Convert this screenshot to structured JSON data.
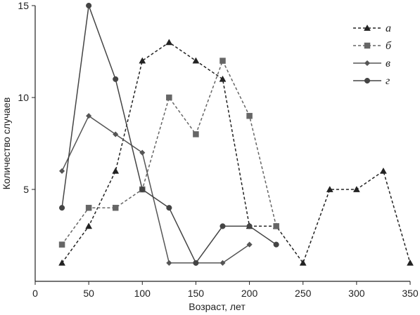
{
  "chart_data": {
    "type": "line",
    "xlabel": "Возраст, лет",
    "ylabel": "Количество случаев",
    "xlim": [
      0,
      350
    ],
    "ylim": [
      0,
      15
    ],
    "x_ticks": [
      0,
      50,
      100,
      150,
      200,
      250,
      300,
      350
    ],
    "y_ticks": [
      5,
      10,
      15
    ],
    "x_tick_labels": [
      "0",
      "50",
      "100",
      "150",
      "200",
      "250",
      "300",
      "350"
    ],
    "y_tick_labels": [
      "5",
      "10",
      "15"
    ],
    "grid": false,
    "legend_position": "top-right",
    "series": [
      {
        "name": "а",
        "marker": "triangle",
        "line_style": "dashed",
        "color": "#222222",
        "x": [
          25,
          50,
          75,
          100,
          125,
          150,
          175,
          200,
          225,
          250,
          275,
          300,
          325,
          350
        ],
        "y": [
          1,
          3,
          6,
          12,
          13,
          12,
          11,
          3,
          3,
          1,
          5,
          5,
          6,
          1
        ]
      },
      {
        "name": "б",
        "marker": "square",
        "line_style": "dashed",
        "color": "#666666",
        "x": [
          25,
          50,
          75,
          100,
          125,
          150,
          175,
          200,
          225
        ],
        "y": [
          2,
          4,
          4,
          5,
          10,
          8,
          12,
          9,
          3
        ]
      },
      {
        "name": "в",
        "marker": "diamond",
        "line_style": "solid",
        "color": "#555555",
        "x": [
          25,
          50,
          75,
          100,
          125,
          150,
          175,
          200
        ],
        "y": [
          6,
          9,
          8,
          7,
          1,
          1,
          1,
          2
        ]
      },
      {
        "name": "г",
        "marker": "circle",
        "line_style": "solid",
        "color": "#444444",
        "x": [
          25,
          50,
          75,
          100,
          125,
          150,
          175,
          200,
          225
        ],
        "y": [
          4,
          15,
          11,
          5,
          4,
          1,
          3,
          3,
          2
        ]
      }
    ]
  }
}
